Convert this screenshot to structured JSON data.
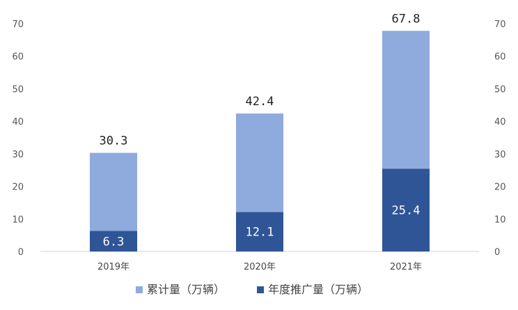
{
  "chart_data": {
    "type": "bar",
    "categories": [
      "2019年",
      "2020年",
      "2021年"
    ],
    "series": [
      {
        "name": "累计量（万辆）",
        "values": [
          30.3,
          42.4,
          67.8
        ],
        "color": "#8faadc",
        "labels": [
          "30.3",
          "42.4",
          "67.8"
        ]
      },
      {
        "name": "年度推广量（万辆）",
        "values": [
          6.3,
          12.1,
          25.4
        ],
        "color": "#2f5597",
        "labels": [
          "6.3",
          "12.1",
          "25.4"
        ]
      }
    ],
    "ylim": [
      0,
      70
    ],
    "yticks": [
      "0",
      "10",
      "20",
      "30",
      "40",
      "50",
      "60",
      "70"
    ],
    "secondary_axis": true,
    "grid": false,
    "legend_position": "bottom"
  }
}
